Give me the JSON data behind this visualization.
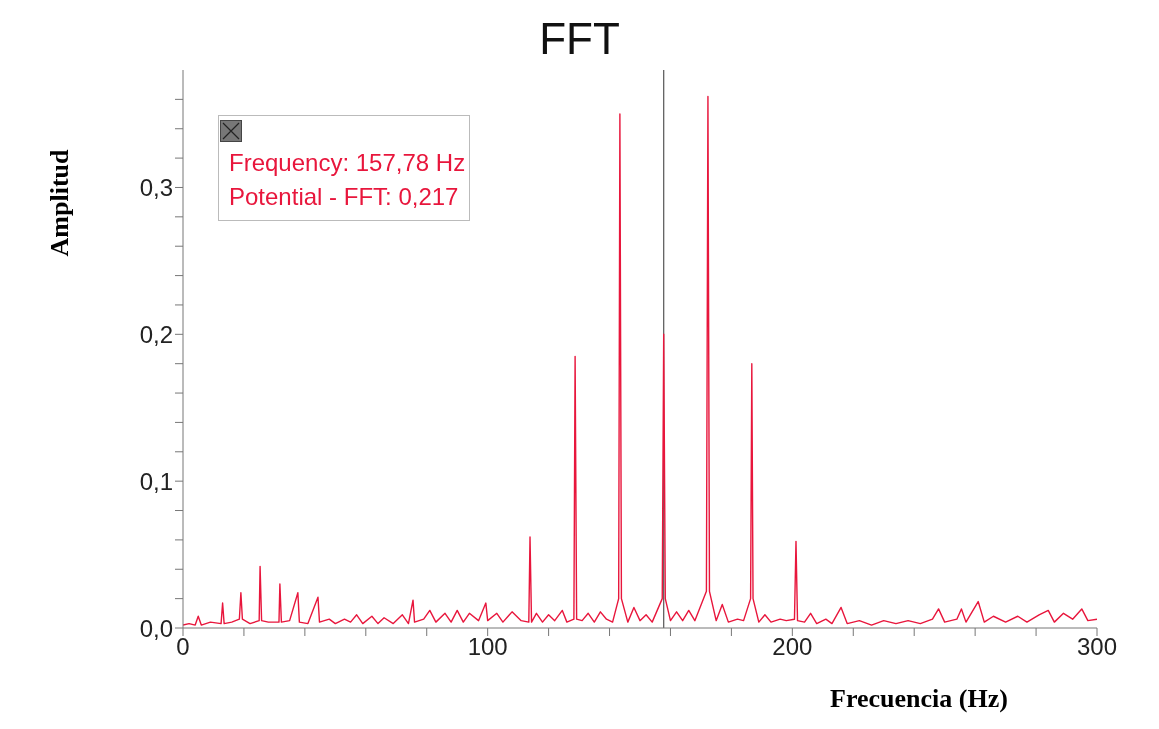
{
  "chart_data": {
    "type": "line",
    "title": "FFT",
    "xlabel": "Frecuencia (Hz)",
    "ylabel": "Amplitud",
    "annotations": [
      "Frequency: 157,78 Hz",
      "Potential - FFT: 0,217"
    ],
    "xlim": [
      0,
      300
    ],
    "xticks": [
      0,
      {
        "value": 20,
        "label": null
      },
      {
        "value": 40,
        "label": null
      },
      {
        "value": 60,
        "label": null
      },
      {
        "value": 80,
        "label": null
      },
      100,
      {
        "value": 120,
        "label": null
      },
      {
        "value": 140,
        "label": null
      },
      {
        "value": 160,
        "label": null
      },
      {
        "value": 180,
        "label": null
      },
      200,
      {
        "value": 220,
        "label": null
      },
      {
        "value": 240,
        "label": null
      },
      {
        "value": 260,
        "label": null
      },
      {
        "value": 280,
        "label": null
      },
      300
    ],
    "ylim": [
      0,
      0.38
    ],
    "yticks": [
      {
        "value": 0,
        "label": "0,0"
      },
      {
        "value": 0.02,
        "label": null
      },
      {
        "value": 0.04,
        "label": null
      },
      {
        "value": 0.06,
        "label": null
      },
      {
        "value": 0.08,
        "label": null
      },
      {
        "value": 0.1,
        "label": "0,1"
      },
      {
        "value": 0.12,
        "label": null
      },
      {
        "value": 0.14,
        "label": null
      },
      {
        "value": 0.16,
        "label": null
      },
      {
        "value": 0.18,
        "label": null
      },
      {
        "value": 0.2,
        "label": "0,2"
      },
      {
        "value": 0.22,
        "label": null
      },
      {
        "value": 0.24,
        "label": null
      },
      {
        "value": 0.26,
        "label": null
      },
      {
        "value": 0.28,
        "label": null
      },
      {
        "value": 0.3,
        "label": "0,3"
      },
      {
        "value": 0.32,
        "label": null
      },
      {
        "value": 0.34,
        "label": null
      },
      {
        "value": 0.36,
        "label": null
      }
    ],
    "grid": false,
    "legend": false,
    "marker": "none",
    "line_style": "solid",
    "ref_lines": [
      {
        "axis": "x",
        "value": 157.78,
        "color": "#555555"
      }
    ],
    "series": [
      {
        "color": "#e8163c",
        "x": [
          0,
          2,
          4,
          5,
          6,
          9,
          12.5,
          13,
          13.5,
          16,
          18.5,
          19,
          19.5,
          22,
          25,
          25.3,
          25.8,
          28,
          31.5,
          31.8,
          32.3,
          35,
          37.7,
          38.2,
          41,
          44.3,
          44.8,
          48,
          50,
          53,
          55,
          57,
          59,
          62,
          64,
          66,
          69,
          72,
          74,
          75.5,
          76,
          79,
          81,
          83,
          86,
          88,
          90,
          92,
          94,
          97,
          99.4,
          100,
          103,
          105,
          108,
          111,
          113.5,
          113.9,
          114.4,
          116,
          118,
          120,
          122,
          124.5,
          126,
          128.3,
          128.7,
          129.2,
          131,
          133,
          135,
          137,
          139,
          141,
          143,
          143.4,
          143.9,
          146,
          148,
          150,
          152,
          154,
          157.3,
          157.78,
          158.3,
          160,
          162,
          164,
          166,
          168,
          171.8,
          172.3,
          172.8,
          175,
          177,
          179,
          182,
          184,
          186.3,
          186.7,
          187.1,
          189,
          191,
          193,
          196,
          198,
          200.7,
          201.2,
          201.7,
          204,
          206,
          208,
          211,
          213,
          216,
          218,
          222,
          226,
          230,
          234,
          238,
          242,
          246,
          248,
          250,
          254,
          255.5,
          257,
          261,
          263,
          266,
          270,
          274,
          277,
          281,
          284,
          286,
          289,
          292,
          295,
          297,
          300
        ],
        "values": [
          0.002,
          0.003,
          0.002,
          0.008,
          0.002,
          0.004,
          0.003,
          0.017,
          0.003,
          0.004,
          0.006,
          0.024,
          0.006,
          0.003,
          0.005,
          0.042,
          0.005,
          0.004,
          0.004,
          0.03,
          0.004,
          0.005,
          0.024,
          0.004,
          0.003,
          0.021,
          0.004,
          0.006,
          0.003,
          0.006,
          0.004,
          0.009,
          0.003,
          0.008,
          0.003,
          0.007,
          0.003,
          0.009,
          0.003,
          0.019,
          0.004,
          0.006,
          0.012,
          0.004,
          0.01,
          0.004,
          0.012,
          0.004,
          0.01,
          0.005,
          0.017,
          0.005,
          0.01,
          0.004,
          0.011,
          0.005,
          0.004,
          0.062,
          0.004,
          0.01,
          0.004,
          0.009,
          0.005,
          0.012,
          0.004,
          0.006,
          0.185,
          0.006,
          0.005,
          0.01,
          0.004,
          0.011,
          0.006,
          0.004,
          0.02,
          0.35,
          0.02,
          0.004,
          0.014,
          0.005,
          0.009,
          0.004,
          0.02,
          0.2,
          0.02,
          0.005,
          0.011,
          0.005,
          0.012,
          0.005,
          0.025,
          0.362,
          0.025,
          0.005,
          0.016,
          0.004,
          0.006,
          0.005,
          0.02,
          0.18,
          0.02,
          0.004,
          0.009,
          0.004,
          0.006,
          0.005,
          0.006,
          0.059,
          0.005,
          0.004,
          0.01,
          0.003,
          0.006,
          0.003,
          0.014,
          0.003,
          0.005,
          0.002,
          0.005,
          0.003,
          0.005,
          0.003,
          0.006,
          0.013,
          0.004,
          0.006,
          0.013,
          0.004,
          0.018,
          0.004,
          0.008,
          0.004,
          0.008,
          0.004,
          0.009,
          0.012,
          0.004,
          0.01,
          0.006,
          0.013,
          0.005,
          0.006
        ]
      }
    ]
  }
}
